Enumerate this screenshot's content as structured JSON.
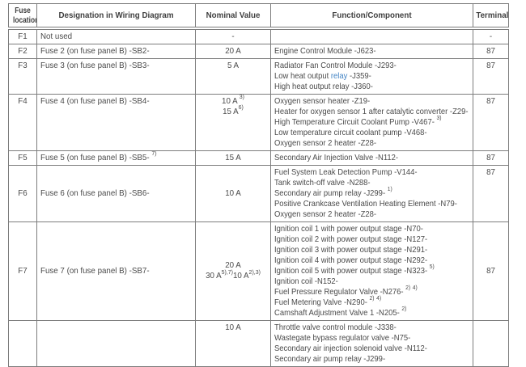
{
  "colors": {
    "border_gray": "#7d7d7d",
    "text_dark": "#4a4a4a",
    "link_blue": "#4183c4",
    "background": "#ffffff"
  },
  "table": {
    "columns": [
      "Fuse location",
      "Designation in Wiring Diagram",
      "Nominal Value",
      "Function/Component",
      "Terminal"
    ],
    "rows": [
      {
        "location": "F1",
        "designation": "Not used",
        "nominal": [
          "-"
        ],
        "functions": [],
        "terminal": "-"
      },
      {
        "location": "F2",
        "designation": "Fuse 2 (on fuse panel B) -SB2-",
        "nominal": [
          "20 A"
        ],
        "functions": [
          "Engine Control Module -J623-"
        ],
        "terminal": "87"
      },
      {
        "location": "F3",
        "designation": "Fuse 3 (on fuse panel B) -SB3-",
        "nominal": [
          "5 A"
        ],
        "functions": [
          "Radiator Fan Control Module -J293-",
          "Low heat output [[relay]] -J359-",
          "High heat output relay -J360-"
        ],
        "terminal": "87"
      },
      {
        "location": "F4",
        "designation": "Fuse 4 (on fuse panel B) -SB4-",
        "nominal": [
          "10 A ^{3)}",
          "15 A^{6)}"
        ],
        "functions": [
          "Oxygen sensor heater -Z19-",
          "Heater for oxygen sensor 1 after catalytic converter -Z29-",
          "High Temperature Circuit Coolant Pump -V467- ^{3)}",
          "Low temperature circuit coolant pump -V468-",
          "Oxygen sensor 2 heater -Z28-"
        ],
        "terminal": "87"
      },
      {
        "location": "F5",
        "designation": "Fuse 5 (on fuse panel B) -SB5- ^{7)}",
        "nominal": [
          "15 A"
        ],
        "functions": [
          "Secondary Air Injection Valve -N112-"
        ],
        "terminal": "87"
      },
      {
        "location": "F6",
        "designation": "Fuse 6 (on fuse panel B) -SB6-",
        "valign": "middle",
        "terminal_valign": "top",
        "nominal": [
          "10 A"
        ],
        "functions": [
          "Fuel System Leak Detection Pump -V144-",
          "Tank switch-off valve -N288-",
          "Secondary air pump relay -J299- ^{1)}",
          "Positive Crankcase Ventilation Heating Element -N79-",
          "Oxygen sensor 2 heater -Z28-"
        ],
        "terminal": "87"
      },
      {
        "location": "F7",
        "designation": "Fuse 7 (on fuse panel B) -SB7-",
        "valign": "middle",
        "terminal_valign": "middle",
        "nominal": [
          "20 A",
          "30 A^{5),7)}10 A^{2),3)}"
        ],
        "functions": [
          "Ignition coil 1 with power output stage -N70-",
          "Ignition coil 2 with power output stage -N127-",
          "Ignition coil 3 with power output stage -N291-",
          "Ignition coil 4 with power output stage -N292-",
          "Ignition coil 5 with power output stage -N323- ^{5)}",
          "Ignition coil -N152-",
          "Fuel Pressure Regulator Valve -N276- ^{2)} ^{4)}",
          "Fuel Metering Valve -N290- ^{2)} ^{4)}",
          "Camshaft Adjustment Valve 1 -N205- ^{2)}"
        ],
        "terminal": "87"
      },
      {
        "location": "",
        "designation": "",
        "nominal": [
          "10 A"
        ],
        "functions": [
          "Throttle valve control module -J338-",
          "Wastegate bypass regulator valve -N75-",
          "Secondary air injection solenoid valve -N112-",
          "Secondary air pump relay -J299-"
        ],
        "terminal": ""
      }
    ]
  }
}
